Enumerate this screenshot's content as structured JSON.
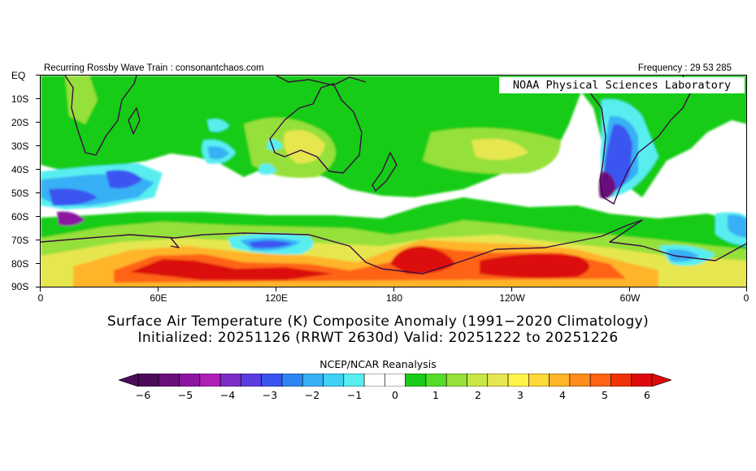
{
  "header": {
    "left_text": "Recurring Rossby Wave Train : consonantchaos.com",
    "right_text": "Frequency : 29 53 285"
  },
  "watermark": "NOAA Physical Sciences Laboratory",
  "y_axis_labels": [
    "EQ",
    "10S",
    "20S",
    "30S",
    "40S",
    "50S",
    "60S",
    "70S",
    "80S",
    "90S"
  ],
  "x_axis_labels": [
    "0",
    "60E",
    "120E",
    "180",
    "120W",
    "60W",
    "0"
  ],
  "title": "Surface Air Temperature (K) Composite Anomaly (1991−2020 Climatology)",
  "subtitle": "Initialized: 20251126 (RRWT 2630d) Valid: 20251222 to 20251226",
  "source": "NCEP/NCAR Reanalysis",
  "colorbar": {
    "labels": [
      "−6",
      "−5",
      "−4",
      "−3",
      "−2",
      "−1",
      "0",
      "1",
      "2",
      "3",
      "4",
      "5",
      "6"
    ],
    "colors": [
      "#4b0a5a",
      "#6a0f7c",
      "#8c16a0",
      "#b01fb8",
      "#7d2cc8",
      "#5a3ee0",
      "#3a55f0",
      "#2e86f5",
      "#37b0f5",
      "#3dd2f5",
      "#58eef0",
      "#ffffff",
      "#ffffff",
      "#19cc19",
      "#55dc2a",
      "#96e03a",
      "#c8e646",
      "#e6e650",
      "#fff44a",
      "#ffd83a",
      "#ffb42a",
      "#ff8c1e",
      "#ff6414",
      "#f0320a",
      "#dc0a0a"
    ]
  },
  "map_layers": [
    {
      "name": "anomaly-plus-1",
      "color": "#19cc19"
    },
    {
      "name": "anomaly-plus-2",
      "color": "#96e03a"
    },
    {
      "name": "anomaly-plus-3",
      "color": "#e6e650"
    },
    {
      "name": "anomaly-plus-4",
      "color": "#ffb42a"
    },
    {
      "name": "anomaly-plus-5",
      "color": "#ff6414"
    },
    {
      "name": "anomaly-plus-6",
      "color": "#dc0a0a"
    },
    {
      "name": "anomaly-minus-1",
      "color": "#58eef0"
    },
    {
      "name": "anomaly-minus-2",
      "color": "#37b0f5"
    },
    {
      "name": "anomaly-minus-3",
      "color": "#3a55f0"
    },
    {
      "name": "anomaly-minus-5",
      "color": "#8c16a0"
    }
  ],
  "coastline_color": "#3a0d3f"
}
